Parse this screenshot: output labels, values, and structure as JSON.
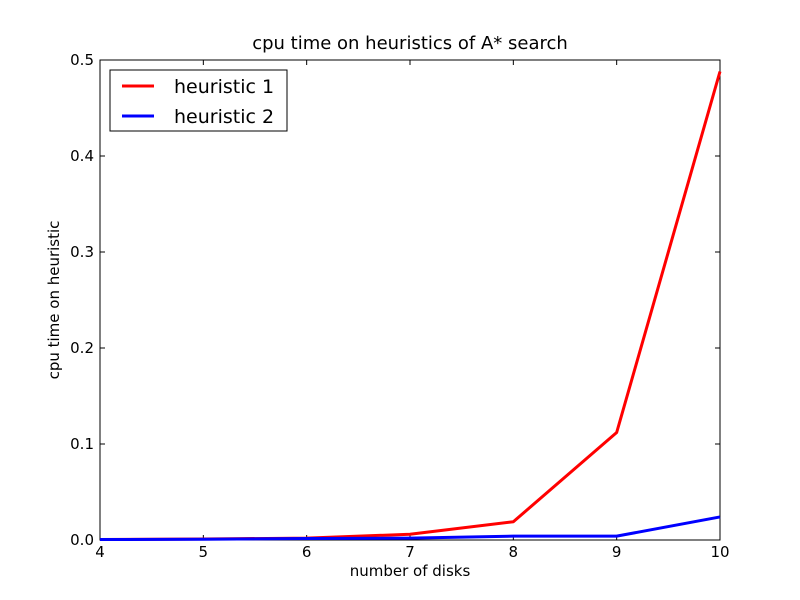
{
  "chart_data": {
    "type": "line",
    "title": "cpu time on heuristics of A* search",
    "xlabel": "number of disks",
    "ylabel": "cpu time on heuristic",
    "xlim": [
      4,
      10
    ],
    "ylim": [
      0,
      0.5
    ],
    "xticks": [
      "4",
      "5",
      "6",
      "7",
      "8",
      "9",
      "10"
    ],
    "yticks": [
      "0.0",
      "0.1",
      "0.2",
      "0.3",
      "0.4",
      "0.5"
    ],
    "grid": false,
    "legend_position": "top-left",
    "x": [
      4,
      5,
      6,
      7,
      8,
      9,
      10
    ],
    "series": [
      {
        "name": "heuristic 1",
        "color": "#ff0000",
        "values": [
          0.0005,
          0.001,
          0.002,
          0.006,
          0.019,
          0.112,
          0.488
        ]
      },
      {
        "name": "heuristic 2",
        "color": "#0000ff",
        "values": [
          0.0005,
          0.0008,
          0.0015,
          0.002,
          0.004,
          0.004,
          0.024
        ]
      }
    ]
  }
}
